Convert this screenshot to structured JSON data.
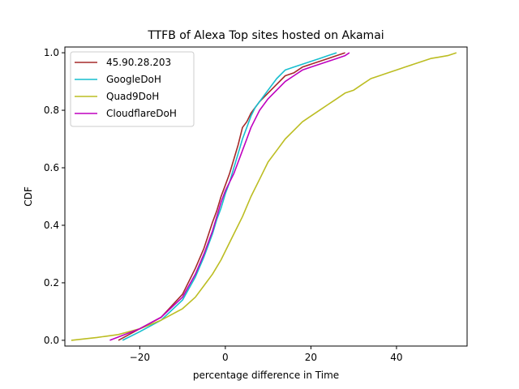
{
  "chart_data": {
    "type": "line",
    "title": "TTFB of Alexa Top sites hosted on Akamai",
    "xlabel": "percentage difference in Time",
    "ylabel": "CDF",
    "xlim": [
      -37.5,
      56.5
    ],
    "ylim": [
      -0.02,
      1.02
    ],
    "xticks": [
      -20,
      0,
      20,
      40
    ],
    "xtick_labels": [
      "−20",
      "0",
      "20",
      "40"
    ],
    "yticks": [
      0.0,
      0.2,
      0.4,
      0.6,
      0.8,
      1.0
    ],
    "ytick_labels": [
      "0.0",
      "0.2",
      "0.4",
      "0.6",
      "0.8",
      "1.0"
    ],
    "grid": false,
    "legend_position": "upper-left",
    "series": [
      {
        "name": "45.90.28.203",
        "color": "#a52a2a",
        "points": [
          [
            -25,
            0.0
          ],
          [
            -20,
            0.04
          ],
          [
            -15,
            0.08
          ],
          [
            -10,
            0.16
          ],
          [
            -7,
            0.25
          ],
          [
            -5,
            0.32
          ],
          [
            -3,
            0.41
          ],
          [
            -2,
            0.45
          ],
          [
            -1,
            0.5
          ],
          [
            0,
            0.54
          ],
          [
            1,
            0.58
          ],
          [
            2,
            0.63
          ],
          [
            3,
            0.68
          ],
          [
            4,
            0.74
          ],
          [
            5,
            0.76
          ],
          [
            6,
            0.79
          ],
          [
            7,
            0.81
          ],
          [
            8,
            0.83
          ],
          [
            10,
            0.86
          ],
          [
            12,
            0.89
          ],
          [
            14,
            0.92
          ],
          [
            16,
            0.93
          ],
          [
            18,
            0.95
          ],
          [
            20,
            0.96
          ],
          [
            22,
            0.97
          ],
          [
            24,
            0.98
          ],
          [
            26,
            0.99
          ],
          [
            28,
            1.0
          ]
        ]
      },
      {
        "name": "GoogleDoH",
        "color": "#17becf",
        "points": [
          [
            -24,
            0.0
          ],
          [
            -20,
            0.03
          ],
          [
            -15,
            0.07
          ],
          [
            -10,
            0.14
          ],
          [
            -7,
            0.22
          ],
          [
            -5,
            0.29
          ],
          [
            -3,
            0.37
          ],
          [
            -2,
            0.42
          ],
          [
            -1,
            0.46
          ],
          [
            0,
            0.51
          ],
          [
            1,
            0.55
          ],
          [
            2,
            0.6
          ],
          [
            3,
            0.65
          ],
          [
            4,
            0.7
          ],
          [
            5,
            0.74
          ],
          [
            6,
            0.78
          ],
          [
            7,
            0.81
          ],
          [
            8,
            0.83
          ],
          [
            10,
            0.87
          ],
          [
            12,
            0.91
          ],
          [
            14,
            0.94
          ],
          [
            16,
            0.95
          ],
          [
            18,
            0.96
          ],
          [
            20,
            0.97
          ],
          [
            22,
            0.98
          ],
          [
            24,
            0.99
          ],
          [
            26,
            1.0
          ]
        ]
      },
      {
        "name": "Quad9DoH",
        "color": "#bcbd22",
        "points": [
          [
            -36,
            0.0
          ],
          [
            -30,
            0.01
          ],
          [
            -25,
            0.02
          ],
          [
            -20,
            0.04
          ],
          [
            -15,
            0.07
          ],
          [
            -10,
            0.11
          ],
          [
            -7,
            0.15
          ],
          [
            -5,
            0.19
          ],
          [
            -3,
            0.23
          ],
          [
            -1,
            0.28
          ],
          [
            0,
            0.31
          ],
          [
            2,
            0.37
          ],
          [
            4,
            0.43
          ],
          [
            6,
            0.5
          ],
          [
            8,
            0.56
          ],
          [
            10,
            0.62
          ],
          [
            12,
            0.66
          ],
          [
            14,
            0.7
          ],
          [
            16,
            0.73
          ],
          [
            18,
            0.76
          ],
          [
            20,
            0.78
          ],
          [
            22,
            0.8
          ],
          [
            24,
            0.82
          ],
          [
            26,
            0.84
          ],
          [
            28,
            0.86
          ],
          [
            30,
            0.87
          ],
          [
            32,
            0.89
          ],
          [
            34,
            0.91
          ],
          [
            36,
            0.92
          ],
          [
            38,
            0.93
          ],
          [
            40,
            0.94
          ],
          [
            42,
            0.95
          ],
          [
            44,
            0.96
          ],
          [
            46,
            0.97
          ],
          [
            48,
            0.98
          ],
          [
            50,
            0.985
          ],
          [
            52,
            0.99
          ],
          [
            54,
            1.0
          ]
        ]
      },
      {
        "name": "CloudflareDoH",
        "color": "#bf00bf",
        "points": [
          [
            -27,
            0.0
          ],
          [
            -20,
            0.04
          ],
          [
            -15,
            0.08
          ],
          [
            -10,
            0.15
          ],
          [
            -7,
            0.23
          ],
          [
            -5,
            0.3
          ],
          [
            -3,
            0.38
          ],
          [
            -2,
            0.43
          ],
          [
            -1,
            0.48
          ],
          [
            0,
            0.52
          ],
          [
            1,
            0.55
          ],
          [
            2,
            0.58
          ],
          [
            3,
            0.62
          ],
          [
            4,
            0.66
          ],
          [
            5,
            0.7
          ],
          [
            6,
            0.74
          ],
          [
            7,
            0.77
          ],
          [
            8,
            0.8
          ],
          [
            10,
            0.84
          ],
          [
            12,
            0.87
          ],
          [
            14,
            0.9
          ],
          [
            16,
            0.92
          ],
          [
            18,
            0.94
          ],
          [
            20,
            0.95
          ],
          [
            22,
            0.96
          ],
          [
            24,
            0.97
          ],
          [
            26,
            0.98
          ],
          [
            28,
            0.99
          ],
          [
            29,
            1.0
          ]
        ]
      }
    ]
  }
}
